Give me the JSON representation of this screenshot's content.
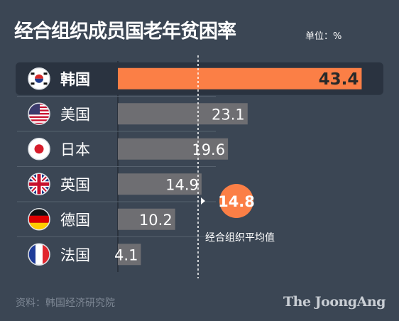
{
  "title": "经合组织成员国老年贫困率",
  "unit": "单位：%",
  "source": "资料：韩国经济研究院",
  "brand": "The JoongAng",
  "colors": {
    "background": "#3b4654",
    "highlight_bar": "#fb7f46",
    "bar": "#6e6e72",
    "highlight_row": "#2a3340"
  },
  "chart_data": {
    "type": "bar",
    "orientation": "horizontal",
    "categories": [
      "韩国",
      "美国",
      "日本",
      "英国",
      "德国",
      "法国"
    ],
    "values": [
      43.4,
      23.1,
      19.6,
      14.9,
      10.2,
      4.1
    ],
    "flags": [
      "korea-flag-icon",
      "usa-flag-icon",
      "japan-flag-icon",
      "uk-flag-icon",
      "germany-flag-icon",
      "france-flag-icon"
    ],
    "highlight": "韩国",
    "xlim": [
      0,
      46
    ],
    "reference_line": {
      "value": 14.8,
      "label": "14.8",
      "caption": "经合组织平均值"
    },
    "title": "经合组织成员国老年贫困率",
    "xlabel": "",
    "ylabel": "",
    "grid": false
  }
}
